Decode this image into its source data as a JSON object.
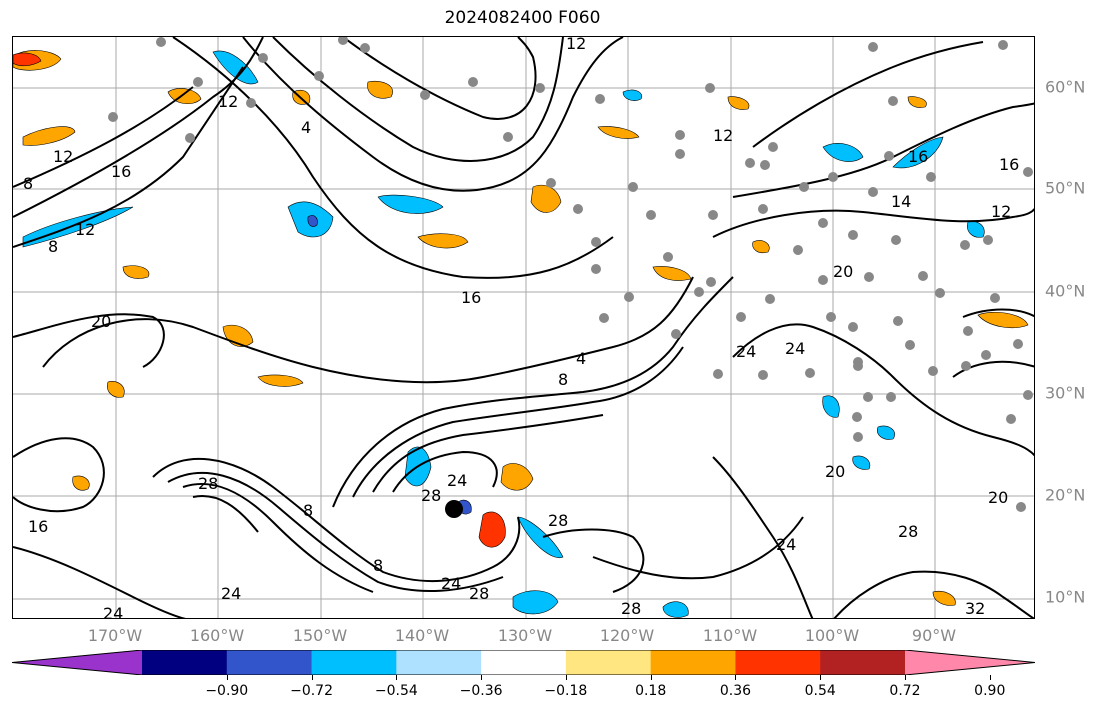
{
  "title": "2024082400 F060",
  "latitude_labels": [
    "60°N",
    "50°N",
    "40°N",
    "30°N",
    "20°N",
    "10°N"
  ],
  "longitude_labels": [
    "170°W",
    "160°W",
    "150°W",
    "140°W",
    "130°W",
    "120°W",
    "110°W",
    "100°W",
    "90°W"
  ],
  "colorbar": {
    "ticks": [
      "−0.90",
      "−0.72",
      "−0.54",
      "−0.36",
      "−0.18",
      "0.18",
      "0.36",
      "0.54",
      "0.72",
      "0.90"
    ],
    "colors": [
      "#9933cc",
      "#000080",
      "#3355cc",
      "#00bfff",
      "#aee0ff",
      "#ffffff",
      "#ffe680",
      "#ffa500",
      "#ff3300",
      "#b22222",
      "#ff88aa"
    ],
    "extend": "both"
  },
  "contour_labels": [
    "12",
    "8",
    "16",
    "12",
    "8",
    "12",
    "4",
    "12",
    "16",
    "20",
    "16",
    "8",
    "4",
    "24",
    "28",
    "24",
    "28",
    "8",
    "28",
    "24",
    "24",
    "28",
    "8",
    "28",
    "16",
    "12",
    "16",
    "14",
    "12",
    "20",
    "24",
    "24",
    "24",
    "20",
    "28",
    "32",
    "20"
  ],
  "map": {
    "background": "#ffffff",
    "contour_color": "#000000",
    "gridline_color": "#aaaaaa",
    "station_marker_color": "#888888",
    "cyclone_center_color": "#000000"
  }
}
